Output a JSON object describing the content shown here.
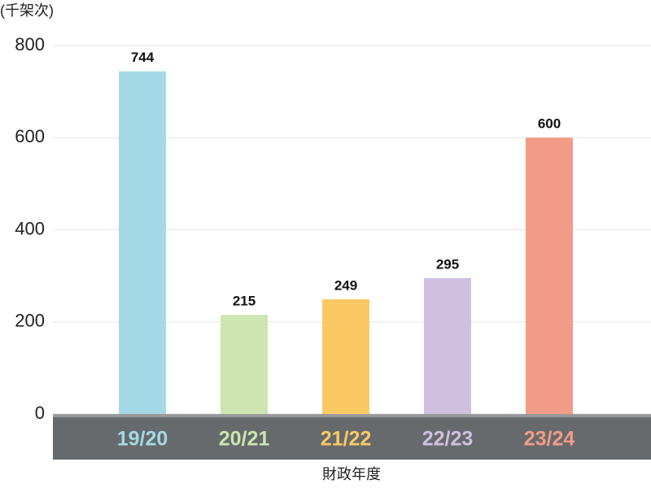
{
  "chart_data": {
    "type": "bar",
    "y_label": "(千架次)",
    "x_label": "財政年度",
    "categories": [
      "19/20",
      "20/21",
      "21/22",
      "22/23",
      "23/24"
    ],
    "values": [
      744,
      215,
      249,
      295,
      600
    ],
    "colors": [
      "#a3d9e6",
      "#cde5b0",
      "#fbc964",
      "#cfbfe0",
      "#f29b86"
    ],
    "ylim": [
      0,
      800
    ],
    "yticks": [
      0,
      200,
      400,
      600,
      800
    ],
    "grid": true
  }
}
